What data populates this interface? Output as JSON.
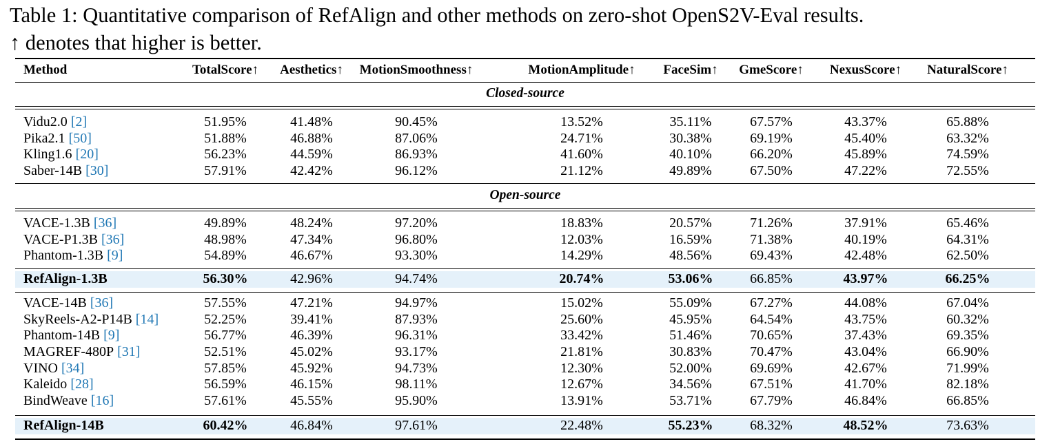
{
  "caption": {
    "line1": "Table 1: Quantitative comparison of RefAlign and other methods on zero-shot OpenS2V-Eval results.",
    "line2": "↑ denotes that higher is better."
  },
  "table": {
    "columns": [
      "Method",
      "TotalScore↑",
      "Aesthetics↑",
      "MotionSmoothness↑",
      "MotionAmplitude↑",
      "FaceSim↑",
      "GmeScore↑",
      "NexusScore↑",
      "NaturalScore↑"
    ],
    "sections": {
      "closed": "Closed-source",
      "open": "Open-source"
    },
    "closed_rows": [
      {
        "name": "Vidu2.0",
        "ref": "[2]",
        "values": [
          "51.95%",
          "41.48%",
          "90.45%",
          "13.52%",
          "35.11%",
          "67.57%",
          "43.37%",
          "65.88%"
        ]
      },
      {
        "name": "Pika2.1",
        "ref": "[50]",
        "values": [
          "51.88%",
          "46.88%",
          "87.06%",
          "24.71%",
          "30.38%",
          "69.19%",
          "45.40%",
          "63.32%"
        ]
      },
      {
        "name": "Kling1.6",
        "ref": "[20]",
        "values": [
          "56.23%",
          "44.59%",
          "86.93%",
          "41.60%",
          "40.10%",
          "66.20%",
          "45.89%",
          "74.59%"
        ]
      },
      {
        "name": "Saber-14B",
        "ref": "[30]",
        "values": [
          "57.91%",
          "42.42%",
          "96.12%",
          "21.12%",
          "49.89%",
          "67.50%",
          "47.22%",
          "72.55%"
        ]
      }
    ],
    "open_small_rows": [
      {
        "name": "VACE-1.3B",
        "ref": "[36]",
        "values": [
          "49.89%",
          "48.24%",
          "97.20%",
          "18.83%",
          "20.57%",
          "71.26%",
          "37.91%",
          "65.46%"
        ]
      },
      {
        "name": "VACE-P1.3B",
        "ref": "[36]",
        "values": [
          "48.98%",
          "47.34%",
          "96.80%",
          "12.03%",
          "16.59%",
          "71.38%",
          "40.19%",
          "64.31%"
        ]
      },
      {
        "name": "Phantom-1.3B",
        "ref": "[9]",
        "values": [
          "54.89%",
          "46.67%",
          "93.30%",
          "14.29%",
          "48.56%",
          "69.43%",
          "42.48%",
          "62.50%"
        ]
      }
    ],
    "refalign_small": {
      "name": "RefAlign-1.3B",
      "values": [
        "56.30%",
        "42.96%",
        "94.74%",
        "20.74%",
        "53.06%",
        "66.85%",
        "43.97%",
        "66.25%"
      ],
      "bold": [
        true,
        false,
        false,
        true,
        true,
        false,
        true,
        true
      ]
    },
    "open_large_rows": [
      {
        "name": "VACE-14B",
        "ref": "[36]",
        "values": [
          "57.55%",
          "47.21%",
          "94.97%",
          "15.02%",
          "55.09%",
          "67.27%",
          "44.08%",
          "67.04%"
        ]
      },
      {
        "name": "SkyReels-A2-P14B",
        "ref": "[14]",
        "values": [
          "52.25%",
          "39.41%",
          "87.93%",
          "25.60%",
          "45.95%",
          "64.54%",
          "43.75%",
          "60.32%"
        ]
      },
      {
        "name": "Phantom-14B",
        "ref": "[9]",
        "values": [
          "56.77%",
          "46.39%",
          "96.31%",
          "33.42%",
          "51.46%",
          "70.65%",
          "37.43%",
          "69.35%"
        ]
      },
      {
        "name": "MAGREF-480P",
        "ref": "[31]",
        "values": [
          "52.51%",
          "45.02%",
          "93.17%",
          "21.81%",
          "30.83%",
          "70.47%",
          "43.04%",
          "66.90%"
        ]
      },
      {
        "name": "VINO",
        "ref": "[34]",
        "values": [
          "57.85%",
          "45.92%",
          "94.73%",
          "12.30%",
          "52.00%",
          "69.69%",
          "42.67%",
          "71.99%"
        ]
      },
      {
        "name": "Kaleido",
        "ref": "[28]",
        "values": [
          "56.59%",
          "46.15%",
          "98.11%",
          "12.67%",
          "34.56%",
          "67.51%",
          "41.70%",
          "82.18%"
        ]
      },
      {
        "name": "BindWeave",
        "ref": "[16]",
        "values": [
          "57.61%",
          "45.55%",
          "95.90%",
          "13.91%",
          "53.71%",
          "67.79%",
          "46.84%",
          "66.85%"
        ]
      }
    ],
    "refalign_large": {
      "name": "RefAlign-14B",
      "values": [
        "60.42%",
        "46.84%",
        "97.61%",
        "22.48%",
        "55.23%",
        "68.32%",
        "48.52%",
        "73.63%"
      ],
      "bold": [
        true,
        false,
        false,
        false,
        true,
        false,
        true,
        false
      ]
    },
    "highlight_color": "#e5f1fa",
    "citation_color": "#1f77b4"
  }
}
